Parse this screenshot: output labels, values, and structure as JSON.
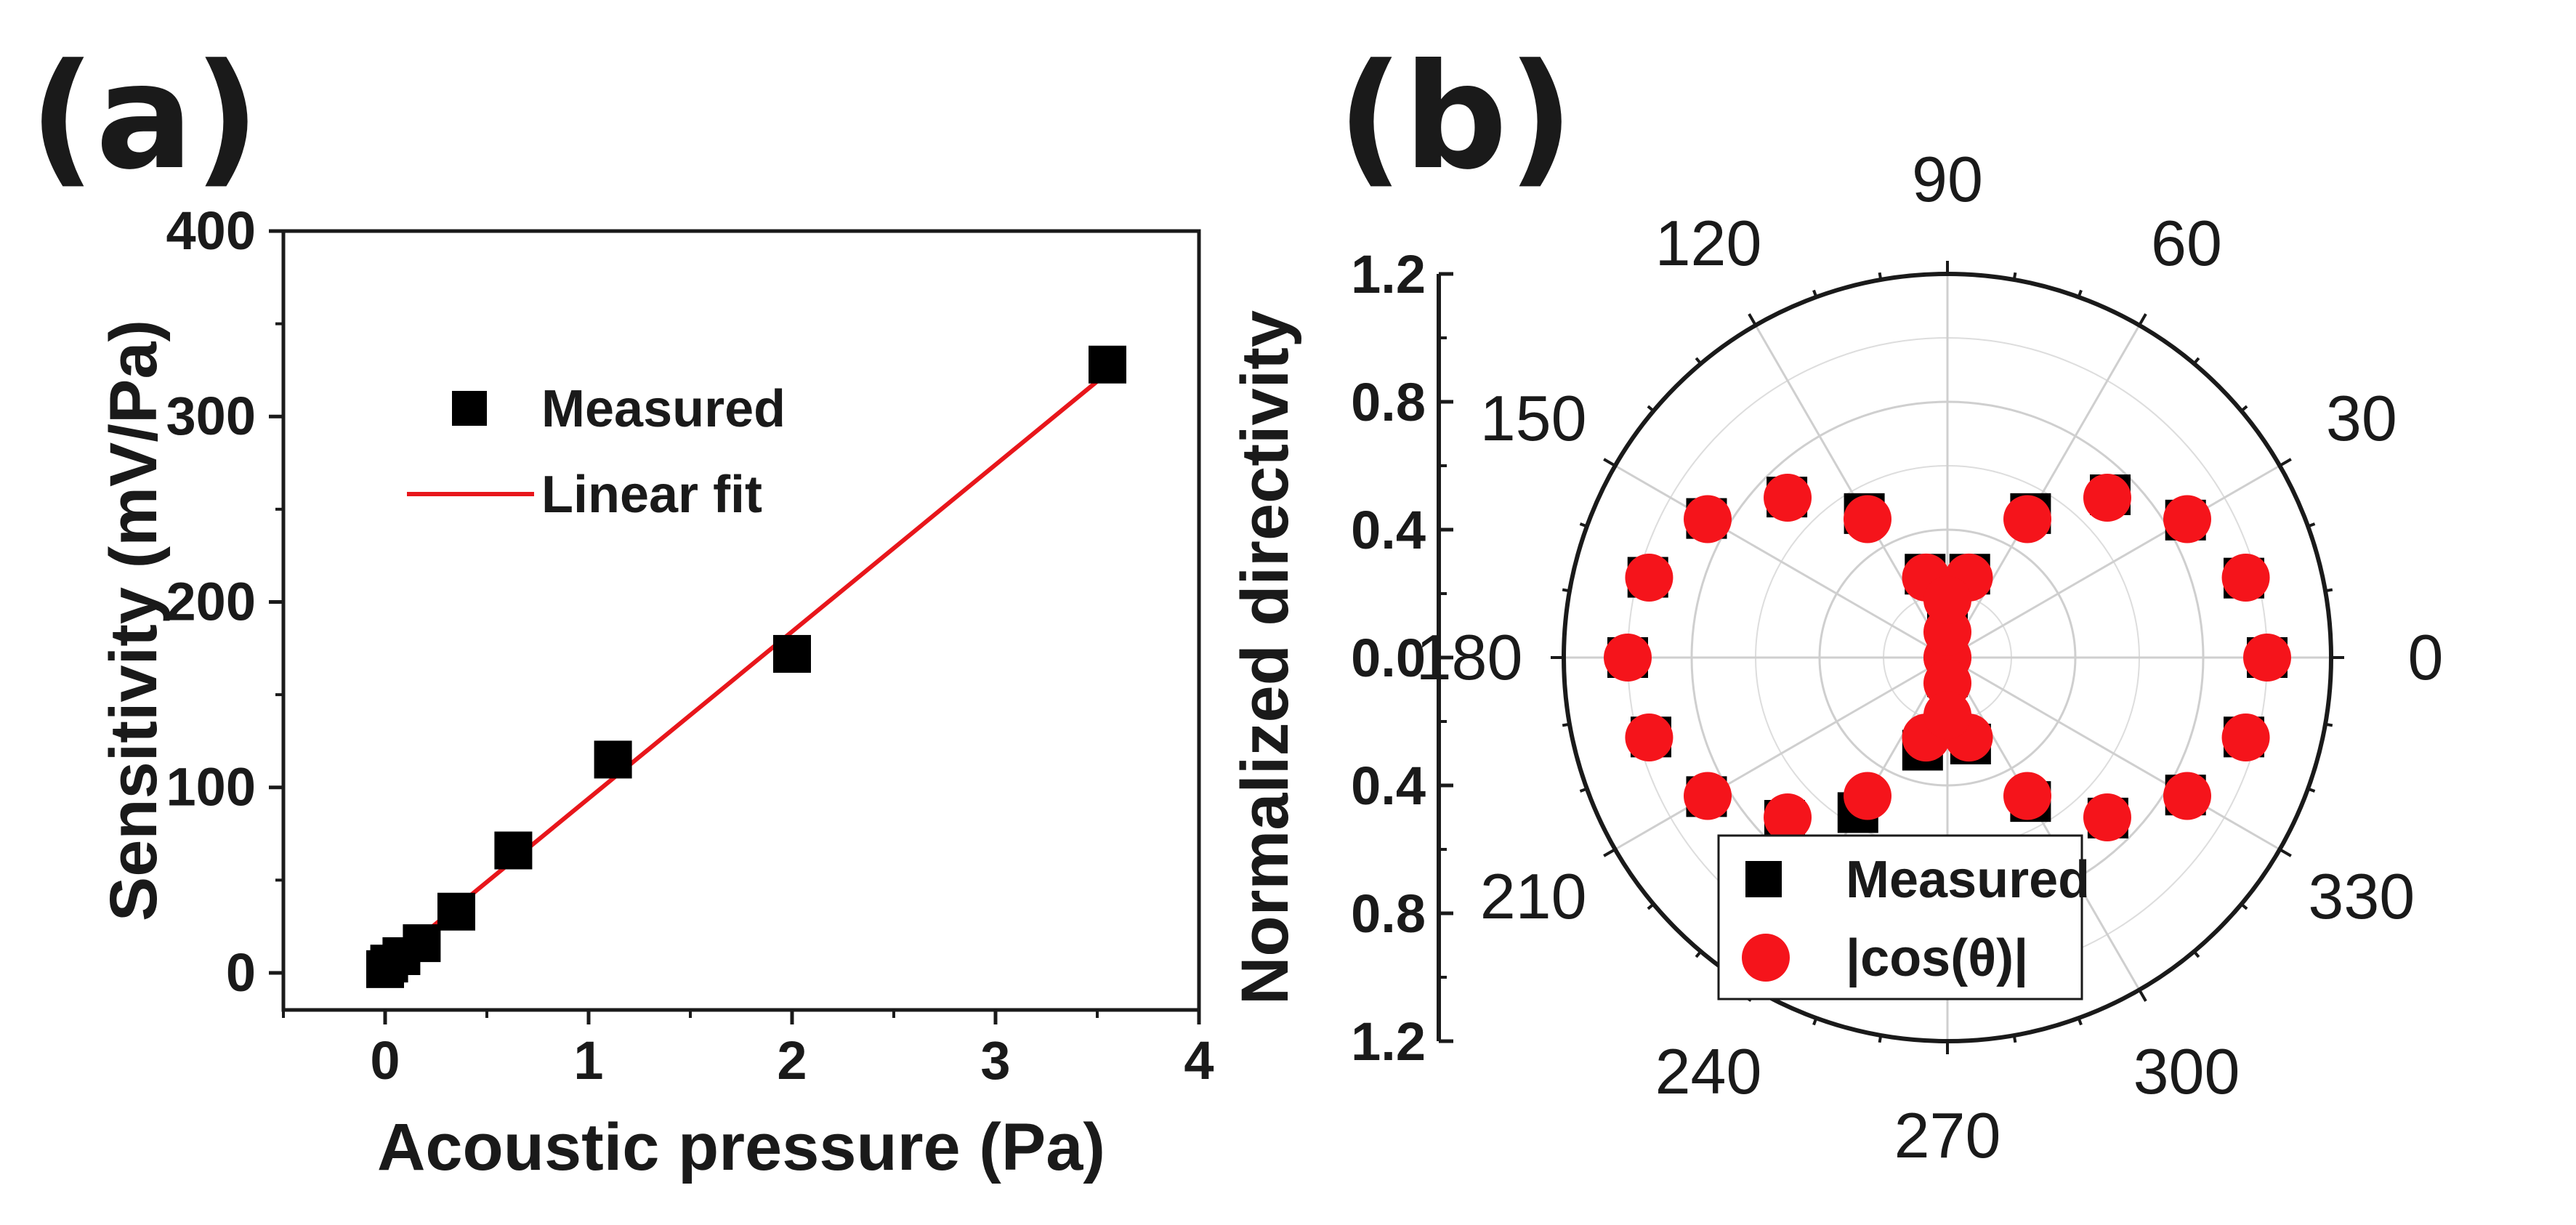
{
  "panel_a_letter": "(a)",
  "panel_b_letter": "(b)",
  "chart_data": [
    {
      "type": "scatter",
      "panel": "a",
      "xlabel": "Acoustic pressure (Pa)",
      "ylabel": "Sensitivity (mV/Pa)",
      "xlim": [
        -0.5,
        4
      ],
      "ylim": [
        -20,
        400
      ],
      "xticks": [
        "0",
        "1",
        "2",
        "3",
        "4"
      ],
      "yticks": [
        "0",
        "100",
        "200",
        "300",
        "400"
      ],
      "series": [
        {
          "name": "Measured",
          "marker": "square",
          "color": "#000000",
          "points": [
            {
              "x": 0.0,
              "y": 2
            },
            {
              "x": 0.02,
              "y": 5
            },
            {
              "x": 0.08,
              "y": 9
            },
            {
              "x": 0.18,
              "y": 16
            },
            {
              "x": 0.35,
              "y": 33
            },
            {
              "x": 0.63,
              "y": 66
            },
            {
              "x": 1.12,
              "y": 115
            },
            {
              "x": 2.0,
              "y": 172
            },
            {
              "x": 3.55,
              "y": 328
            }
          ]
        },
        {
          "name": "Linear fit",
          "marker": "line",
          "color": "#e8161b",
          "points": [
            {
              "x": 0.0,
              "y": 4
            },
            {
              "x": 3.6,
              "y": 328
            }
          ]
        }
      ],
      "legend": {
        "placement": "top-left",
        "measured_label": "Measured",
        "fit_label": "Linear fit"
      }
    },
    {
      "type": "polar-scatter",
      "panel": "b",
      "ylabel": "Normalized directivity",
      "rmax": 1.2,
      "radial_ticks_upper": [
        "1.2",
        "0.8",
        "0.4",
        "0.0"
      ],
      "radial_ticks_lower": [
        "0.4",
        "0.8",
        "1.2"
      ],
      "angle_labels": [
        "0",
        "30",
        "60",
        "90",
        "120",
        "150",
        "180",
        "210",
        "240",
        "270",
        "300",
        "330"
      ],
      "angles_deg": [
        0,
        15,
        30,
        45,
        60,
        75,
        90,
        105,
        120,
        135,
        150,
        165,
        180,
        195,
        210,
        225,
        240,
        255,
        270,
        285,
        300,
        315,
        330,
        345
      ],
      "series": [
        {
          "name": "Measured",
          "marker": "square",
          "color": "#000000",
          "r": [
            1.0,
            0.96,
            0.86,
            0.72,
            0.52,
            0.27,
            0.08,
            0.27,
            0.52,
            0.71,
            0.87,
            0.97,
            1.0,
            0.96,
            0.87,
            0.72,
            0.56,
            0.3,
            0.06,
            0.28,
            0.52,
            0.71,
            0.86,
            0.96
          ]
        },
        {
          "name": "|cos(θ)|",
          "marker": "circle",
          "color": "#f5141b",
          "r": [
            1.0,
            0.966,
            0.866,
            0.707,
            0.5,
            0.259,
            0.0,
            0.259,
            0.5,
            0.707,
            0.866,
            0.966,
            1.0,
            0.966,
            0.866,
            0.707,
            0.5,
            0.259,
            0.0,
            0.259,
            0.5,
            0.707,
            0.866,
            0.966
          ]
        }
      ],
      "legend": {
        "placement": "bottom-center",
        "measured_label": "Measured",
        "cos_label": "|cos(θ)|"
      }
    }
  ]
}
